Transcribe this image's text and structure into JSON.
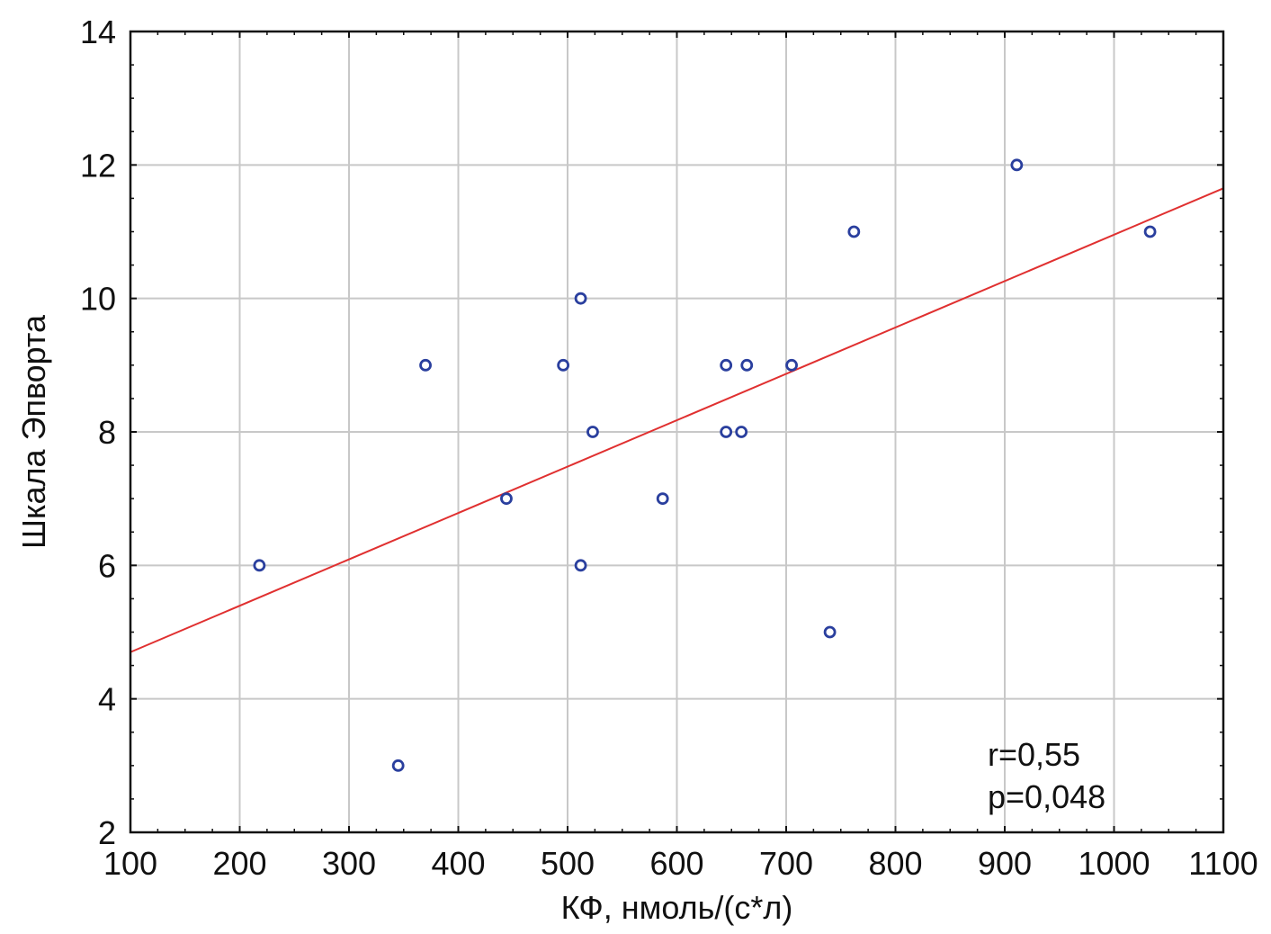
{
  "chart_data": {
    "type": "scatter",
    "xlabel": "КФ, нмоль/(с*л)",
    "ylabel": "Шкала Эпворта",
    "xlim": [
      100,
      1100
    ],
    "ylim": [
      2,
      14
    ],
    "x_ticks": [
      100,
      200,
      300,
      400,
      500,
      600,
      700,
      800,
      900,
      1000,
      1100
    ],
    "y_ticks": [
      2,
      4,
      6,
      8,
      10,
      12,
      14
    ],
    "grid": true,
    "series": [
      {
        "points": [
          {
            "x": 218,
            "y": 6
          },
          {
            "x": 345,
            "y": 3
          },
          {
            "x": 370,
            "y": 9
          },
          {
            "x": 444,
            "y": 7
          },
          {
            "x": 496,
            "y": 9
          },
          {
            "x": 512,
            "y": 10
          },
          {
            "x": 512,
            "y": 6
          },
          {
            "x": 523,
            "y": 8
          },
          {
            "x": 587,
            "y": 7
          },
          {
            "x": 645,
            "y": 9
          },
          {
            "x": 645,
            "y": 8
          },
          {
            "x": 659,
            "y": 8
          },
          {
            "x": 664,
            "y": 9
          },
          {
            "x": 705,
            "y": 9
          },
          {
            "x": 740,
            "y": 5
          },
          {
            "x": 762,
            "y": 11
          },
          {
            "x": 911,
            "y": 12
          },
          {
            "x": 1033,
            "y": 11
          }
        ],
        "marker_color": "#2a3f9e"
      }
    ],
    "fit_line": {
      "x1": 100,
      "y1": 4.7,
      "x2": 1100,
      "y2": 11.65,
      "color": "#e03030"
    },
    "annotations": [
      "r=0,55",
      "p=0,048"
    ]
  }
}
